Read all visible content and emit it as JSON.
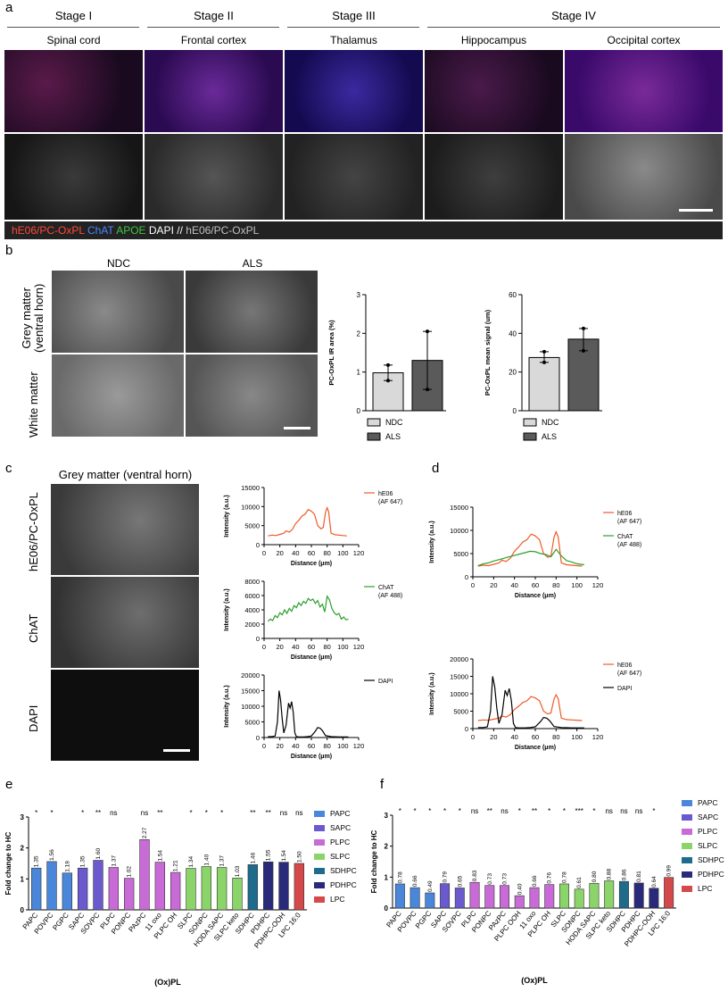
{
  "panel_a": {
    "letter": "a",
    "stages": [
      "Stage I",
      "Stage II",
      "Stage III",
      "Stage IV"
    ],
    "regions": [
      "Spinal cord",
      "Frontal cortex",
      "Thalamus",
      "Hippocampus",
      "Occipital cortex"
    ],
    "stain_legend": {
      "hE06": "hE06/PC-OxPL",
      "chat": "ChAT",
      "apoe": "APOE",
      "dapi": "DAPI",
      "sep": "//",
      "grey": "hE06/PC-OxPL"
    },
    "colors": {
      "red": "#ff3b2f",
      "blue": "#3d7bff",
      "green": "#3fc43f",
      "white": "#ffffff",
      "grey": "#bbbbbb"
    }
  },
  "panel_b": {
    "letter": "b",
    "col_labels": [
      "NDC",
      "ALS"
    ],
    "row_labels": [
      "Grey matter\n(ventral horn)",
      "White matter"
    ],
    "row_label_1a": "Grey matter",
    "row_label_1b": "(ventral horn)",
    "row_label_2": "White matter",
    "legend": [
      "NDC",
      "ALS"
    ]
  },
  "panel_c": {
    "letter": "c",
    "title": "Grey matter (ventral horn)",
    "row_labels": [
      "hE06/PC-OxPL",
      "ChAT",
      "DAPI"
    ]
  },
  "panel_d": {
    "letter": "d"
  },
  "panel_e": {
    "letter": "e"
  },
  "panel_f": {
    "letter": "f"
  },
  "chart_data": [
    {
      "id": "b1",
      "type": "bar",
      "categories": [
        "NDC",
        "ALS"
      ],
      "values": [
        0.98,
        1.3
      ],
      "points": [
        [
          0.78,
          1.18
        ],
        [
          0.55,
          2.05
        ]
      ],
      "ylabel": "PC-OxPL IR area (%)",
      "ylim": [
        0,
        3
      ],
      "yticks": [
        0,
        1,
        2,
        3
      ],
      "colors": [
        "#d9d9d9",
        "#5a5a5a"
      ]
    },
    {
      "id": "b2",
      "type": "bar",
      "categories": [
        "NDC",
        "ALS"
      ],
      "values": [
        27.5,
        37
      ],
      "points": [
        [
          25,
          30.5
        ],
        [
          31,
          42.5
        ]
      ],
      "ylabel": "PC-OxPL mean signal (um)",
      "ylim": [
        0,
        60
      ],
      "yticks": [
        0,
        20,
        40,
        60
      ],
      "colors": [
        "#d9d9d9",
        "#5a5a5a"
      ]
    },
    {
      "id": "c1",
      "type": "line",
      "ylabel": "Intensity (a.u.)",
      "xlabel": "Distance (μm)",
      "ylim": [
        0,
        15000
      ],
      "yticks": [
        0,
        5000,
        10000,
        15000
      ],
      "xlim": [
        0,
        120
      ],
      "xticks": [
        0,
        20,
        40,
        60,
        80,
        100,
        120
      ],
      "series": [
        {
          "name": "hE06\n(AF 647)",
          "legend_lines": [
            "hE06",
            "(AF 647)"
          ],
          "color": "#f05a28",
          "x": [
            5,
            10,
            15,
            20,
            25,
            28,
            32,
            36,
            40,
            44,
            48,
            52,
            56,
            60,
            64,
            68,
            72,
            75,
            78,
            80,
            82,
            85,
            90,
            95,
            100,
            105
          ],
          "y": [
            2300,
            2500,
            2400,
            2700,
            3000,
            3600,
            3300,
            4000,
            5500,
            6400,
            7500,
            8000,
            9200,
            8800,
            8000,
            5000,
            4200,
            4500,
            8500,
            9700,
            8600,
            3000,
            2600,
            2500,
            2400,
            2300
          ]
        }
      ]
    },
    {
      "id": "c2",
      "type": "line",
      "ylabel": "Intensity (a.u.)",
      "xlabel": "Distance (μm)",
      "ylim": [
        0,
        8000
      ],
      "yticks": [
        0,
        2000,
        4000,
        6000,
        8000
      ],
      "xlim": [
        0,
        120
      ],
      "xticks": [
        0,
        20,
        40,
        60,
        80,
        100,
        120
      ],
      "series": [
        {
          "name": "ChAT\n(AF 488)",
          "legend_lines": [
            "ChAT",
            "(AF 488)"
          ],
          "color": "#2ca02c",
          "x": [
            5,
            8,
            11,
            14,
            17,
            20,
            23,
            26,
            29,
            32,
            35,
            38,
            41,
            44,
            47,
            50,
            53,
            56,
            59,
            62,
            65,
            68,
            71,
            74,
            77,
            80,
            83,
            86,
            89,
            92,
            95,
            98,
            101,
            104,
            107
          ],
          "y": [
            2400,
            2700,
            2500,
            3200,
            2900,
            3600,
            3300,
            4000,
            3500,
            4200,
            3800,
            4600,
            4300,
            5000,
            4600,
            5200,
            4900,
            5600,
            5300,
            5500,
            4900,
            5300,
            4400,
            4800,
            3700,
            5900,
            5400,
            4200,
            3600,
            3300,
            3500,
            2700,
            3000,
            2600,
            2700
          ]
        }
      ]
    },
    {
      "id": "c3",
      "type": "line",
      "ylabel": "Intensity (a.u.)",
      "xlabel": "Distance (μm)",
      "ylim": [
        0,
        20000
      ],
      "yticks": [
        0,
        5000,
        10000,
        15000,
        20000
      ],
      "xlim": [
        0,
        120
      ],
      "xticks": [
        0,
        20,
        40,
        60,
        80,
        100,
        120
      ],
      "series": [
        {
          "name": "DAPI",
          "legend_lines": [
            "DAPI"
          ],
          "color": "#000000",
          "x": [
            5,
            10,
            14,
            17,
            19,
            21,
            23,
            25,
            28,
            31,
            33,
            35,
            37,
            39,
            41,
            44,
            50,
            55,
            60,
            65,
            68,
            71,
            74,
            78,
            85,
            95,
            107
          ],
          "y": [
            300,
            300,
            500,
            5000,
            15000,
            12000,
            6000,
            1500,
            4000,
            11000,
            9500,
            11500,
            8000,
            1500,
            300,
            200,
            200,
            300,
            500,
            2000,
            3200,
            3000,
            2200,
            600,
            300,
            200,
            200
          ]
        }
      ]
    },
    {
      "id": "d1",
      "type": "line",
      "ylabel": "Intensity (a.u.)",
      "xlabel": "Distance (μm)",
      "ylim": [
        0,
        15000
      ],
      "yticks": [
        0,
        5000,
        10000,
        15000
      ],
      "xlim": [
        0,
        120
      ],
      "xticks": [
        0,
        20,
        40,
        60,
        80,
        100,
        120
      ],
      "series": [
        {
          "name": "hE06\n(AF 647)",
          "legend_lines": [
            "hE06",
            "(AF 647)"
          ],
          "color": "#f05a28",
          "x": [
            5,
            10,
            15,
            20,
            25,
            28,
            32,
            36,
            40,
            44,
            48,
            52,
            56,
            60,
            64,
            68,
            72,
            75,
            78,
            80,
            82,
            85,
            90,
            95,
            100,
            105
          ],
          "y": [
            2300,
            2500,
            2400,
            2700,
            3000,
            3600,
            3300,
            4000,
            5500,
            6400,
            7500,
            8000,
            9200,
            8800,
            8000,
            5000,
            4200,
            4500,
            8500,
            9700,
            8600,
            3000,
            2600,
            2500,
            2400,
            2300
          ]
        },
        {
          "name": "ChAT\n(AF 488)",
          "legend_lines": [
            "ChAT",
            "(AF 488)"
          ],
          "color": "#2ca02c",
          "x": [
            5,
            10,
            15,
            20,
            25,
            30,
            35,
            40,
            45,
            50,
            55,
            60,
            65,
            70,
            75,
            80,
            85,
            90,
            95,
            100,
            107
          ],
          "y": [
            2400,
            2800,
            3000,
            3400,
            3700,
            4000,
            4300,
            4600,
            4900,
            5200,
            5500,
            5400,
            5000,
            4800,
            4300,
            5900,
            4500,
            3500,
            3200,
            2800,
            2600
          ]
        }
      ]
    },
    {
      "id": "d2",
      "type": "line",
      "ylabel": "Intensity (a.u.)",
      "xlabel": "Distance (μm)",
      "ylim": [
        0,
        20000
      ],
      "yticks": [
        0,
        5000,
        10000,
        15000,
        20000
      ],
      "xlim": [
        0,
        120
      ],
      "xticks": [
        0,
        20,
        40,
        60,
        80,
        100,
        120
      ],
      "series": [
        {
          "name": "hE06\n(AF 647)",
          "legend_lines": [
            "hE06",
            "(AF 647)"
          ],
          "color": "#f05a28",
          "x": [
            5,
            10,
            15,
            20,
            25,
            28,
            32,
            36,
            40,
            44,
            48,
            52,
            56,
            60,
            64,
            68,
            72,
            75,
            78,
            80,
            82,
            85,
            90,
            95,
            100,
            105
          ],
          "y": [
            2300,
            2500,
            2400,
            2700,
            3000,
            3600,
            3300,
            4000,
            5500,
            6400,
            7500,
            8000,
            9200,
            8800,
            8000,
            5000,
            4200,
            4500,
            8500,
            9700,
            8600,
            3000,
            2600,
            2500,
            2400,
            2300
          ]
        },
        {
          "name": "DAPI",
          "legend_lines": [
            "DAPI"
          ],
          "color": "#000000",
          "x": [
            5,
            10,
            14,
            17,
            19,
            21,
            23,
            25,
            28,
            31,
            33,
            35,
            37,
            39,
            41,
            44,
            50,
            55,
            60,
            65,
            68,
            71,
            74,
            78,
            85,
            95,
            107
          ],
          "y": [
            300,
            300,
            500,
            5000,
            15000,
            12000,
            6000,
            1500,
            4000,
            11000,
            9500,
            11500,
            8000,
            1500,
            300,
            200,
            200,
            300,
            500,
            2000,
            3200,
            3000,
            2200,
            600,
            300,
            200,
            200
          ]
        }
      ]
    },
    {
      "id": "e",
      "type": "bar",
      "ylabel": "Fold change to HC",
      "xlabel": "(Ox)PL",
      "ylim": [
        0,
        3
      ],
      "yticks": [
        0,
        1,
        2,
        3
      ],
      "categories": [
        "PAPC",
        "POVPC",
        "PGPC",
        "SAPC",
        "SOVPC",
        "PLPC",
        "PONPC",
        "PAzPC",
        "11 oxo",
        "PLPC OH",
        "SLPC",
        "SONPC",
        "HODA SAPC",
        "SLPC keto",
        "SDHPC",
        "PDHPC",
        "PDHPC-OOH",
        "LPC 16:0"
      ],
      "values": [
        1.35,
        1.56,
        1.19,
        1.35,
        1.6,
        1.37,
        1.02,
        2.27,
        1.54,
        1.21,
        1.34,
        1.4,
        1.37,
        1.03,
        1.46,
        1.55,
        1.54,
        1.5
      ],
      "value_labels": [
        "1.35",
        "1.56",
        "1.19",
        "1.35",
        "1.60",
        "1.37",
        "1.02",
        "2.27",
        "1.54",
        "1.21",
        "1.34",
        "1.40",
        "1.37",
        "1.03",
        "1.46",
        "1.55",
        "1.54",
        "1.50"
      ],
      "significance": [
        "*",
        "*",
        "",
        "*",
        "**",
        "ns",
        "",
        "ns",
        "**",
        "",
        "*",
        "*",
        "*",
        "",
        "**",
        "**",
        "ns",
        "ns"
      ],
      "groups": [
        "PAPC",
        "SAPC",
        "PLPC",
        "SLPC",
        "SDHPC",
        "PDHPC",
        "LPC"
      ],
      "group_colors": [
        "#4a86d9",
        "#6a5acd",
        "#c86bd6",
        "#8bd46a",
        "#1f6b8c",
        "#2a2a7a",
        "#d44a4a"
      ],
      "bar_groups": [
        0,
        0,
        0,
        1,
        1,
        2,
        2,
        2,
        2,
        2,
        3,
        3,
        3,
        3,
        4,
        5,
        5,
        6
      ]
    },
    {
      "id": "f",
      "type": "bar",
      "ylabel": "Fold change to HC",
      "xlabel": "(Ox)PL",
      "ylim": [
        0,
        3
      ],
      "yticks": [
        0,
        1,
        2,
        3
      ],
      "categories": [
        "PAPC",
        "POVPC",
        "PGPC",
        "SAPC",
        "SOVPC",
        "PLPC",
        "PONPC",
        "PAzPC",
        "PLPC OOH",
        "11 oxo",
        "PLPC OH",
        "SLPC",
        "SONPC",
        "HODA SAPC",
        "SLPC keto",
        "SDHPC",
        "PDHPC",
        "PDHPC-OOH",
        "LPC 16:0"
      ],
      "values": [
        0.78,
        0.66,
        0.49,
        0.79,
        0.65,
        0.83,
        0.73,
        0.73,
        0.4,
        0.66,
        0.76,
        0.78,
        0.61,
        0.8,
        0.88,
        0.86,
        0.81,
        0.64,
        0.99
      ],
      "value_labels": [
        "0.78",
        "0.66",
        "0.49",
        "0.79",
        "0.65",
        "0.83",
        "0.73",
        "0.73",
        "0.40",
        "0.66",
        "0.76",
        "0.78",
        "0.61",
        "0.80",
        "0.88",
        "0.86",
        "0.81",
        "0.64",
        "0.99"
      ],
      "significance": [
        "*",
        "*",
        "*",
        "*",
        "*",
        "ns",
        "**",
        "ns",
        "*",
        "**",
        "*",
        "*",
        "***",
        "*",
        "ns",
        "ns",
        "ns",
        "*",
        ""
      ],
      "groups": [
        "PAPC",
        "SAPC",
        "PLPC",
        "SLPC",
        "SDHPC",
        "PDHPC",
        "LPC"
      ],
      "group_colors": [
        "#4a86d9",
        "#6a5acd",
        "#c86bd6",
        "#8bd46a",
        "#1f6b8c",
        "#2a2a7a",
        "#d44a4a"
      ],
      "bar_groups": [
        0,
        0,
        0,
        1,
        1,
        2,
        2,
        2,
        2,
        2,
        2,
        3,
        3,
        3,
        3,
        4,
        5,
        5,
        6
      ]
    }
  ]
}
